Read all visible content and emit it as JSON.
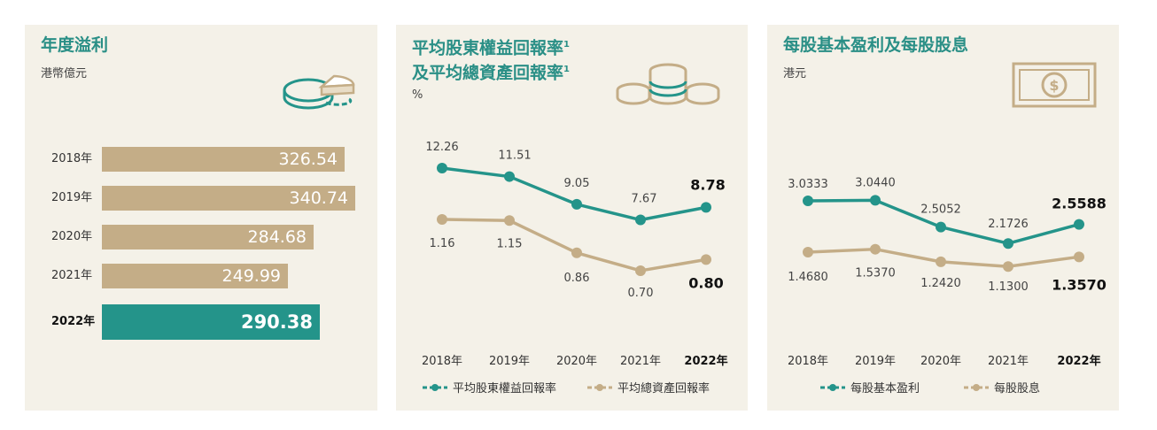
{
  "panels": [
    {
      "title": "年度溢利",
      "unit": "港幣億元",
      "icon": "pie-chart-icon"
    },
    {
      "title_line1": "平均股東權益回報率",
      "title_line2": "及平均總資產回報率",
      "footnote_mark": "1",
      "unit": "%",
      "icon": "coins-stack-icon"
    },
    {
      "title": "每股基本盈利及每股股息",
      "unit": "港元",
      "icon": "banknote-dollar-icon"
    }
  ],
  "colors": {
    "teal": "#24948a",
    "tan": "#c4ad87",
    "panel_bg": "#f4f1e8"
  },
  "chart_data": [
    {
      "type": "bar",
      "orientation": "horizontal",
      "title": "年度溢利",
      "unit": "港幣億元",
      "categories": [
        "2018年",
        "2019年",
        "2020年",
        "2021年",
        "2022年"
      ],
      "values": [
        326.54,
        340.74,
        284.68,
        249.99,
        290.38
      ],
      "value_labels": [
        "326.54",
        "340.74",
        "284.68",
        "249.99",
        "290.38"
      ],
      "highlight_index": 4
    },
    {
      "type": "line",
      "title": "平均股東權益回報率及平均總資產回報率",
      "unit": "%",
      "categories": [
        "2018年",
        "2019年",
        "2020年",
        "2021年",
        "2022年"
      ],
      "series": [
        {
          "name": "平均股東權益回報率",
          "values": [
            12.26,
            11.51,
            9.05,
            7.67,
            8.78
          ],
          "labels": [
            "12.26",
            "11.51",
            "9.05",
            "7.67",
            "8.78"
          ],
          "color": "#24948a"
        },
        {
          "name": "平均總資產回報率",
          "values": [
            1.16,
            1.15,
            0.86,
            0.7,
            0.8
          ],
          "labels": [
            "1.16",
            "1.15",
            "0.86",
            "0.70",
            "0.80"
          ],
          "color": "#c4ad87"
        }
      ],
      "legend_position": "bottom",
      "highlight_index": 4
    },
    {
      "type": "line",
      "title": "每股基本盈利及每股股息",
      "unit": "港元",
      "categories": [
        "2018年",
        "2019年",
        "2020年",
        "2021年",
        "2022年"
      ],
      "series": [
        {
          "name": "每股基本盈利",
          "values": [
            3.0333,
            3.044,
            2.5052,
            2.1726,
            2.5588
          ],
          "labels": [
            "3.0333",
            "3.0440",
            "2.5052",
            "2.1726",
            "2.5588"
          ],
          "color": "#24948a"
        },
        {
          "name": "每股股息",
          "values": [
            1.468,
            1.537,
            1.242,
            1.13,
            1.357
          ],
          "labels": [
            "1.4680",
            "1.5370",
            "1.2420",
            "1.1300",
            "1.3570"
          ],
          "color": "#c4ad87"
        }
      ],
      "legend_position": "bottom",
      "highlight_index": 4
    }
  ]
}
